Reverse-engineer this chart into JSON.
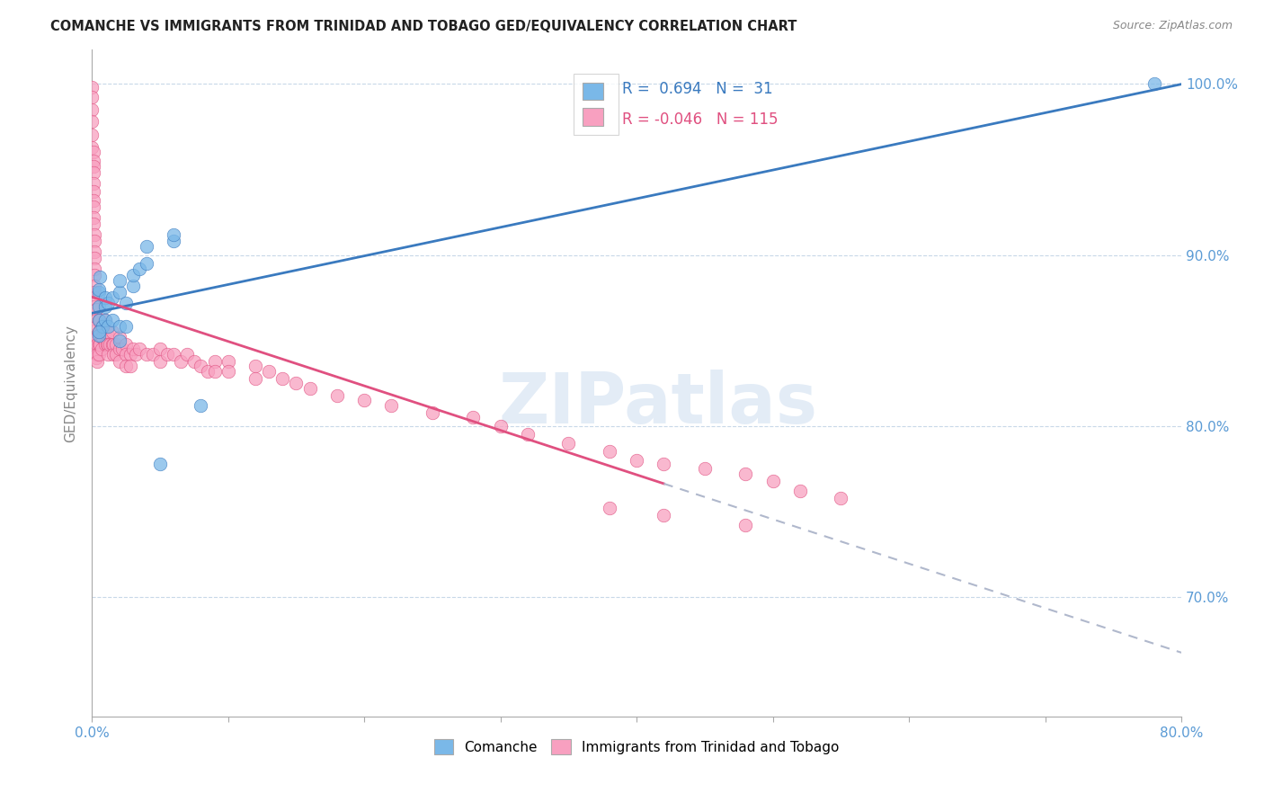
{
  "title": "COMANCHE VS IMMIGRANTS FROM TRINIDAD AND TOBAGO GED/EQUIVALENCY CORRELATION CHART",
  "source": "Source: ZipAtlas.com",
  "ylabel": "GED/Equivalency",
  "x_min": 0.0,
  "x_max": 0.8,
  "y_min": 0.63,
  "y_max": 1.02,
  "y_ticks": [
    0.7,
    0.8,
    0.9,
    1.0
  ],
  "y_tick_labels": [
    "70.0%",
    "80.0%",
    "90.0%",
    "100.0%"
  ],
  "comanche_color": "#7ab8e8",
  "trinidad_color": "#f8a0c0",
  "trend_blue_color": "#3a7abf",
  "trend_pink_color": "#e05080",
  "trend_pink_dash_color": "#b0b8cc",
  "blue_R": "0.694",
  "blue_N": "31",
  "pink_R": "-0.046",
  "pink_N": "115",
  "comanche_x": [
    0.005,
    0.005,
    0.005,
    0.005,
    0.005,
    0.006,
    0.008,
    0.01,
    0.01,
    0.01,
    0.012,
    0.012,
    0.015,
    0.015,
    0.02,
    0.02,
    0.02,
    0.02,
    0.025,
    0.025,
    0.03,
    0.03,
    0.035,
    0.04,
    0.04,
    0.05,
    0.06,
    0.06,
    0.08,
    0.78,
    0.005
  ],
  "comanche_y": [
    0.853,
    0.862,
    0.87,
    0.878,
    0.88,
    0.887,
    0.858,
    0.862,
    0.87,
    0.875,
    0.858,
    0.872,
    0.862,
    0.875,
    0.85,
    0.858,
    0.878,
    0.885,
    0.858,
    0.872,
    0.882,
    0.888,
    0.892,
    0.895,
    0.905,
    0.778,
    0.908,
    0.912,
    0.812,
    1.0,
    0.855
  ],
  "trinidad_x": [
    0.0,
    0.0,
    0.0,
    0.0,
    0.0,
    0.0,
    0.001,
    0.001,
    0.001,
    0.001,
    0.001,
    0.001,
    0.001,
    0.001,
    0.001,
    0.001,
    0.002,
    0.002,
    0.002,
    0.002,
    0.002,
    0.002,
    0.002,
    0.002,
    0.002,
    0.002,
    0.003,
    0.003,
    0.003,
    0.003,
    0.003,
    0.003,
    0.003,
    0.004,
    0.004,
    0.004,
    0.004,
    0.005,
    0.005,
    0.005,
    0.005,
    0.006,
    0.006,
    0.006,
    0.007,
    0.007,
    0.007,
    0.008,
    0.008,
    0.01,
    0.01,
    0.01,
    0.011,
    0.011,
    0.012,
    0.012,
    0.013,
    0.015,
    0.015,
    0.016,
    0.016,
    0.018,
    0.018,
    0.02,
    0.02,
    0.02,
    0.022,
    0.025,
    0.025,
    0.025,
    0.028,
    0.028,
    0.03,
    0.032,
    0.035,
    0.04,
    0.045,
    0.05,
    0.05,
    0.055,
    0.06,
    0.065,
    0.07,
    0.075,
    0.08,
    0.085,
    0.09,
    0.09,
    0.1,
    0.1,
    0.12,
    0.12,
    0.13,
    0.14,
    0.15,
    0.16,
    0.18,
    0.2,
    0.22,
    0.25,
    0.28,
    0.3,
    0.32,
    0.35,
    0.38,
    0.4,
    0.42,
    0.45,
    0.48,
    0.5,
    0.52,
    0.55,
    0.38,
    0.42,
    0.48
  ],
  "trinidad_y": [
    0.998,
    0.992,
    0.985,
    0.978,
    0.97,
    0.963,
    0.96,
    0.955,
    0.952,
    0.948,
    0.942,
    0.937,
    0.932,
    0.928,
    0.922,
    0.918,
    0.912,
    0.908,
    0.902,
    0.898,
    0.892,
    0.888,
    0.882,
    0.878,
    0.875,
    0.87,
    0.868,
    0.862,
    0.858,
    0.852,
    0.848,
    0.845,
    0.84,
    0.852,
    0.848,
    0.842,
    0.838,
    0.862,
    0.855,
    0.848,
    0.842,
    0.862,
    0.855,
    0.848,
    0.858,
    0.852,
    0.845,
    0.858,
    0.852,
    0.862,
    0.855,
    0.848,
    0.855,
    0.848,
    0.848,
    0.842,
    0.848,
    0.855,
    0.848,
    0.848,
    0.842,
    0.848,
    0.842,
    0.852,
    0.845,
    0.838,
    0.845,
    0.848,
    0.842,
    0.835,
    0.842,
    0.835,
    0.845,
    0.842,
    0.845,
    0.842,
    0.842,
    0.845,
    0.838,
    0.842,
    0.842,
    0.838,
    0.842,
    0.838,
    0.835,
    0.832,
    0.838,
    0.832,
    0.838,
    0.832,
    0.835,
    0.828,
    0.832,
    0.828,
    0.825,
    0.822,
    0.818,
    0.815,
    0.812,
    0.808,
    0.805,
    0.8,
    0.795,
    0.79,
    0.785,
    0.78,
    0.778,
    0.775,
    0.772,
    0.768,
    0.762,
    0.758,
    0.752,
    0.748,
    0.742
  ]
}
